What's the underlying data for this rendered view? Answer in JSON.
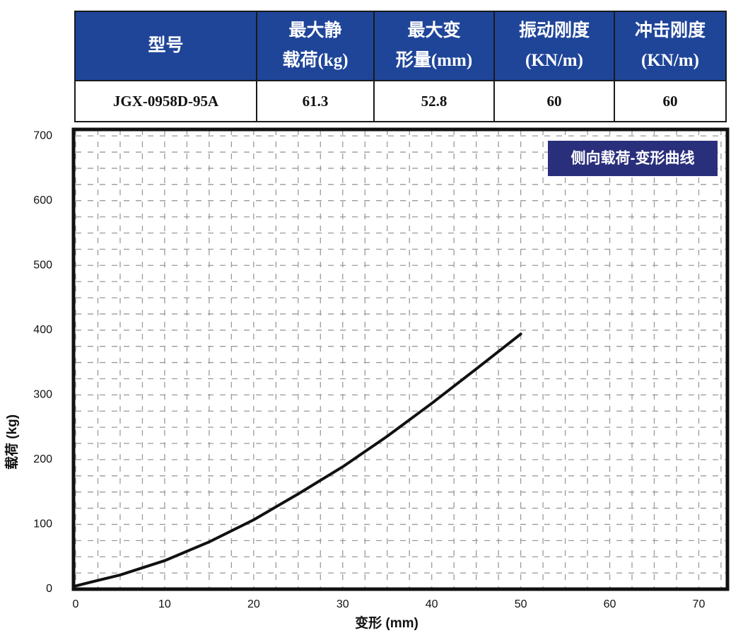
{
  "table": {
    "header": [
      [
        "型号"
      ],
      [
        "最大静",
        "载荷(kg)"
      ],
      [
        "最大变",
        "形量(mm)"
      ],
      [
        "振动刚度",
        "(KN/m)"
      ],
      [
        "冲击刚度",
        "(KN/m)"
      ]
    ],
    "rows": [
      [
        "JGX-0958D-95A",
        "61.3",
        "52.8",
        "60",
        "60"
      ]
    ]
  },
  "chart_data": {
    "type": "line",
    "title": "侧向载荷-变形曲线",
    "x_label": "变形 (mm)",
    "y_label": "载荷 (kg)",
    "x": [
      0,
      5,
      10,
      15,
      20,
      25,
      30,
      35,
      40,
      45,
      50
    ],
    "series": [
      {
        "color": "#111111",
        "values": [
          5,
          22,
          44,
          73,
          107,
          147,
          189,
          236,
          287,
          340,
          394
        ]
      }
    ],
    "xlim": [
      0,
      73.3
    ],
    "ylim": [
      0,
      710
    ],
    "xticks": [
      0,
      10,
      20,
      30,
      40,
      50,
      60,
      70
    ],
    "yticks": [
      0,
      100,
      200,
      300,
      400,
      500,
      600,
      700
    ],
    "grid": true
  }
}
